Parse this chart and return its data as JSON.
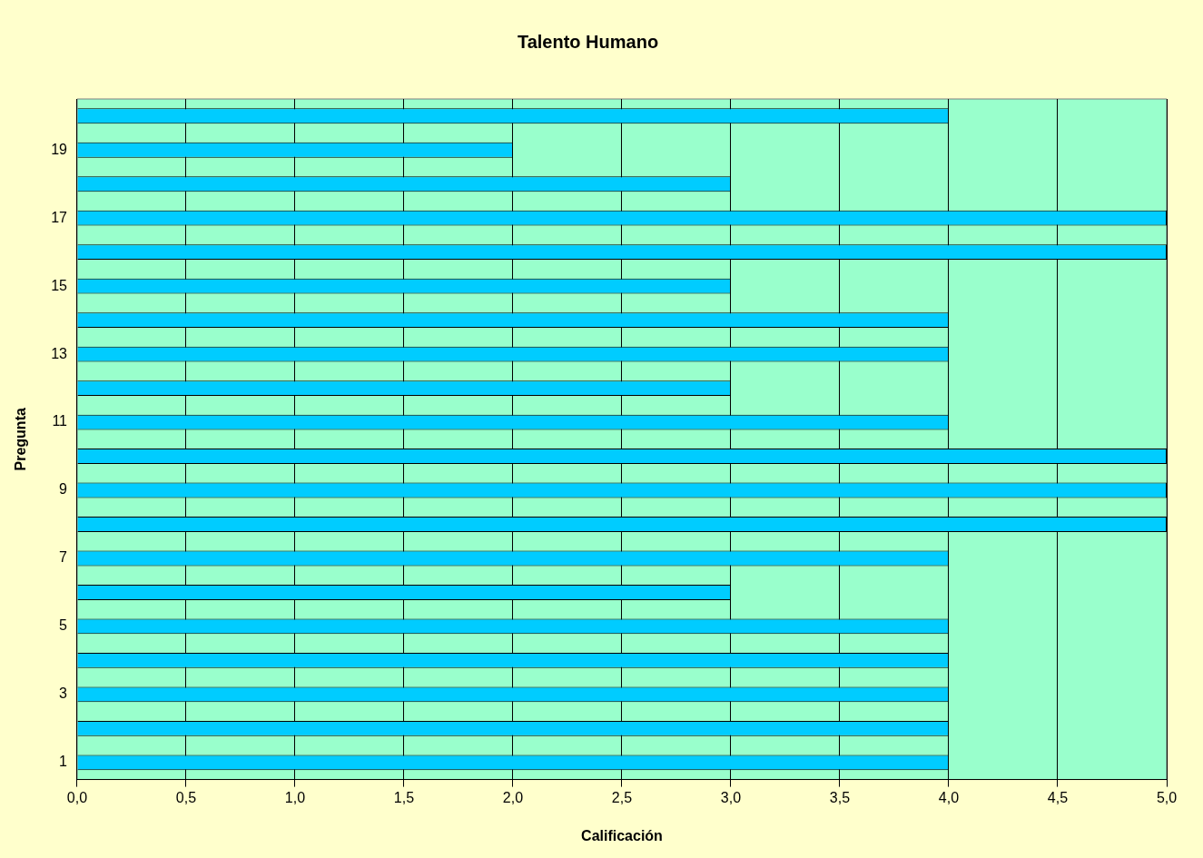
{
  "chart_data": {
    "type": "bar",
    "orientation": "horizontal",
    "title": "Talento Humano",
    "xlabel": "Calificación",
    "ylabel": "Pregunta",
    "categories": [
      null,
      "19",
      null,
      "17",
      null,
      "15",
      null,
      "13",
      null,
      "11",
      null,
      "9",
      null,
      "7",
      null,
      "5",
      null,
      "3",
      null,
      "1"
    ],
    "values": [
      4,
      2,
      3,
      5,
      5,
      3,
      4,
      4,
      3,
      4,
      5,
      5,
      5,
      4,
      3,
      4,
      4,
      4,
      4,
      4
    ],
    "color": "#00ccff",
    "xlim": [
      0,
      5
    ],
    "xticks": [
      {
        "value": 0,
        "label": "0,0"
      },
      {
        "value": 0.5,
        "label": "0,5"
      },
      {
        "value": 1,
        "label": "1,0"
      },
      {
        "value": 1.5,
        "label": "1,5"
      },
      {
        "value": 2,
        "label": "2,0"
      },
      {
        "value": 2.5,
        "label": "2,5"
      },
      {
        "value": 3,
        "label": "3,0"
      },
      {
        "value": 3.5,
        "label": "3,5"
      },
      {
        "value": 4,
        "label": "4,0"
      },
      {
        "value": 4.5,
        "label": "4,5"
      },
      {
        "value": 5,
        "label": "5,0"
      }
    ],
    "grid": "x",
    "legend": false
  }
}
